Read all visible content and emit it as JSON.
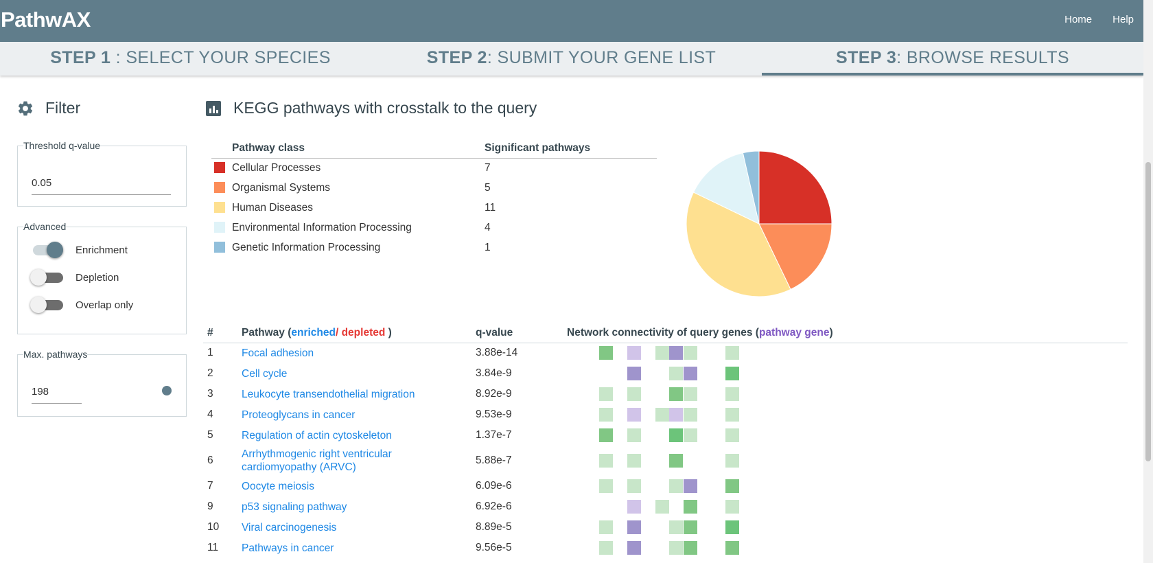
{
  "app": {
    "title": "PathwAX"
  },
  "nav": {
    "home": "Home",
    "help": "Help"
  },
  "steps": [
    {
      "label": "STEP 1",
      "text": " : SELECT YOUR SPECIES"
    },
    {
      "label": "STEP 2",
      "text": ": SUBMIT YOUR GENE LIST"
    },
    {
      "label": "STEP 3",
      "text": ": BROWSE RESULTS"
    }
  ],
  "filter": {
    "title": "Filter",
    "threshold": {
      "legend": "Threshold q-value",
      "value": "0.05"
    },
    "advanced": {
      "legend": "Advanced",
      "toggles": [
        {
          "label": "Enrichment",
          "on": true
        },
        {
          "label": "Depletion",
          "on": false
        },
        {
          "label": "Overlap only",
          "on": false
        }
      ]
    },
    "max_pathways": {
      "legend": "Max. pathways",
      "value": "198",
      "slider_fraction": 1.0
    }
  },
  "main": {
    "title": "KEGG pathways with crosstalk to the query",
    "class_table": {
      "headers": [
        "Pathway class",
        "Significant pathways"
      ],
      "rows": [
        {
          "name": "Cellular Processes",
          "count": "7",
          "color": "#d73027"
        },
        {
          "name": "Organismal Systems",
          "count": "5",
          "color": "#fc8d59"
        },
        {
          "name": "Human Diseases",
          "count": "11",
          "color": "#fee090"
        },
        {
          "name": "Environmental Information Processing",
          "count": "4",
          "color": "#e0f3f8"
        },
        {
          "name": "Genetic Information Processing",
          "count": "1",
          "color": "#91bfdb"
        }
      ]
    },
    "pathway_table": {
      "headers": {
        "num": "#",
        "pathway_prefix": "Pathway (",
        "enriched": "enriched",
        "slash": "/ ",
        "depleted": "depleted",
        "pathway_suffix": " )",
        "qvalue": "q-value",
        "network_prefix": "Network connectivity of query genes (",
        "pathway_gene": "pathway gene",
        "network_suffix": ")"
      },
      "rows": [
        {
          "num": "1",
          "name": "Focal adhesion",
          "q": "3.88e-14"
        },
        {
          "num": "2",
          "name": "Cell cycle",
          "q": "3.84e-9"
        },
        {
          "num": "3",
          "name": "Leukocyte transendothelial migration",
          "q": "8.92e-9"
        },
        {
          "num": "4",
          "name": "Proteoglycans in cancer",
          "q": "9.53e-9"
        },
        {
          "num": "5",
          "name": "Regulation of actin cytoskeleton",
          "q": "1.37e-7"
        },
        {
          "num": "6",
          "name_line1": "Arrhythmogenic right ventricular",
          "name_line2": "cardiomyopathy (ARVC)",
          "q": "5.88e-7"
        },
        {
          "num": "7",
          "name": "Oocyte meiosis",
          "q": "6.09e-6"
        },
        {
          "num": "9",
          "name": "p53 signaling pathway",
          "q": "6.92e-6"
        },
        {
          "num": "10",
          "name": "Viral carcinogenesis",
          "q": "8.89e-5"
        },
        {
          "num": "11",
          "name": "Pathways in cancer",
          "q": "9.56e-5"
        }
      ]
    }
  },
  "chart_data": {
    "type": "pie",
    "categories": [
      "Cellular Processes",
      "Organismal Systems",
      "Human Diseases",
      "Environmental Information Processing",
      "Genetic Information Processing"
    ],
    "values": [
      7,
      5,
      11,
      4,
      1
    ],
    "colors": [
      "#d73027",
      "#fc8d59",
      "#fee090",
      "#e0f3f8",
      "#91bfdb"
    ]
  },
  "connectivity": {
    "colors": {
      "G1": "#c8e6c9",
      "G2": "#81c784",
      "G3": "#6cc47a",
      "P1": "#d1c4e9",
      "P2": "#9f94cc"
    },
    "columns": 11,
    "rows": [
      [
        null,
        "G2",
        null,
        "P1",
        null,
        "G1",
        "P2",
        "G1",
        null,
        null,
        "G1"
      ],
      [
        null,
        null,
        null,
        "P2",
        null,
        null,
        "G1",
        "P2",
        null,
        null,
        "G3"
      ],
      [
        null,
        "G1",
        null,
        "G1",
        null,
        null,
        "G2",
        "G1",
        null,
        null,
        "G1"
      ],
      [
        null,
        "G1",
        null,
        "P1",
        null,
        "G1",
        "P1",
        "G1",
        null,
        null,
        "G1"
      ],
      [
        null,
        "G2",
        null,
        "G1",
        null,
        null,
        "G3",
        "G1",
        null,
        null,
        "G1"
      ],
      [
        null,
        "G1",
        null,
        "G1",
        null,
        null,
        "G2",
        null,
        null,
        null,
        "G1"
      ],
      [
        null,
        "G1",
        null,
        "G1",
        null,
        null,
        "G1",
        "P2",
        null,
        null,
        "G2"
      ],
      [
        null,
        null,
        null,
        "P1",
        null,
        "G1",
        null,
        "G2",
        null,
        null,
        "G1"
      ],
      [
        null,
        "G1",
        null,
        "P2",
        null,
        null,
        "G1",
        "G2",
        null,
        null,
        "G3"
      ],
      [
        null,
        "G1",
        null,
        "P2",
        null,
        null,
        "G1",
        "G2",
        null,
        null,
        "G2"
      ]
    ]
  }
}
